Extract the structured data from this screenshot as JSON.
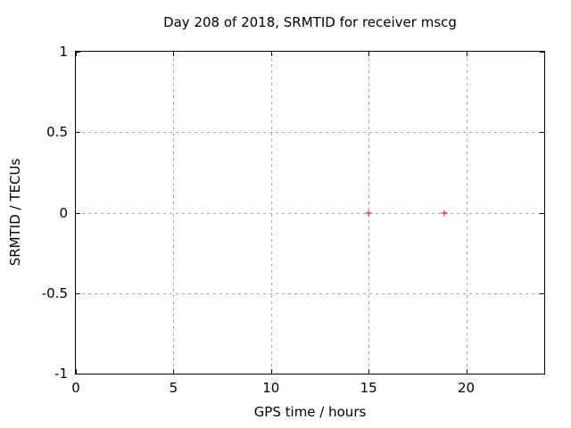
{
  "chart_data": {
    "type": "scatter",
    "title": "Day 208 of 2018, SRMTID for receiver mscg",
    "xlabel": "GPS time / hours",
    "ylabel": "SRMTID / TECUs",
    "xlim": [
      0,
      24
    ],
    "ylim": [
      -1,
      1
    ],
    "grid": true,
    "legend": "none",
    "x_ticks": [
      {
        "value": 0,
        "label": "0"
      },
      {
        "value": 5,
        "label": "5"
      },
      {
        "value": 10,
        "label": "10"
      },
      {
        "value": 15,
        "label": "15"
      },
      {
        "value": 20,
        "label": "20"
      }
    ],
    "y_ticks": [
      {
        "value": -1,
        "label": "-1"
      },
      {
        "value": -0.5,
        "label": "-0.5"
      },
      {
        "value": 0,
        "label": "0"
      },
      {
        "value": 0.5,
        "label": "0.5"
      },
      {
        "value": 1,
        "label": "1"
      }
    ],
    "series": [
      {
        "marker": "plus",
        "color": "#ff0000",
        "points": [
          {
            "x": 15.0,
            "y": 0.0
          },
          {
            "x": 18.9,
            "y": 0.0
          }
        ]
      }
    ],
    "colors": {
      "background": "#ffffff",
      "border": "#000000",
      "grid": "#a8a8a8",
      "text": "#000000"
    }
  }
}
